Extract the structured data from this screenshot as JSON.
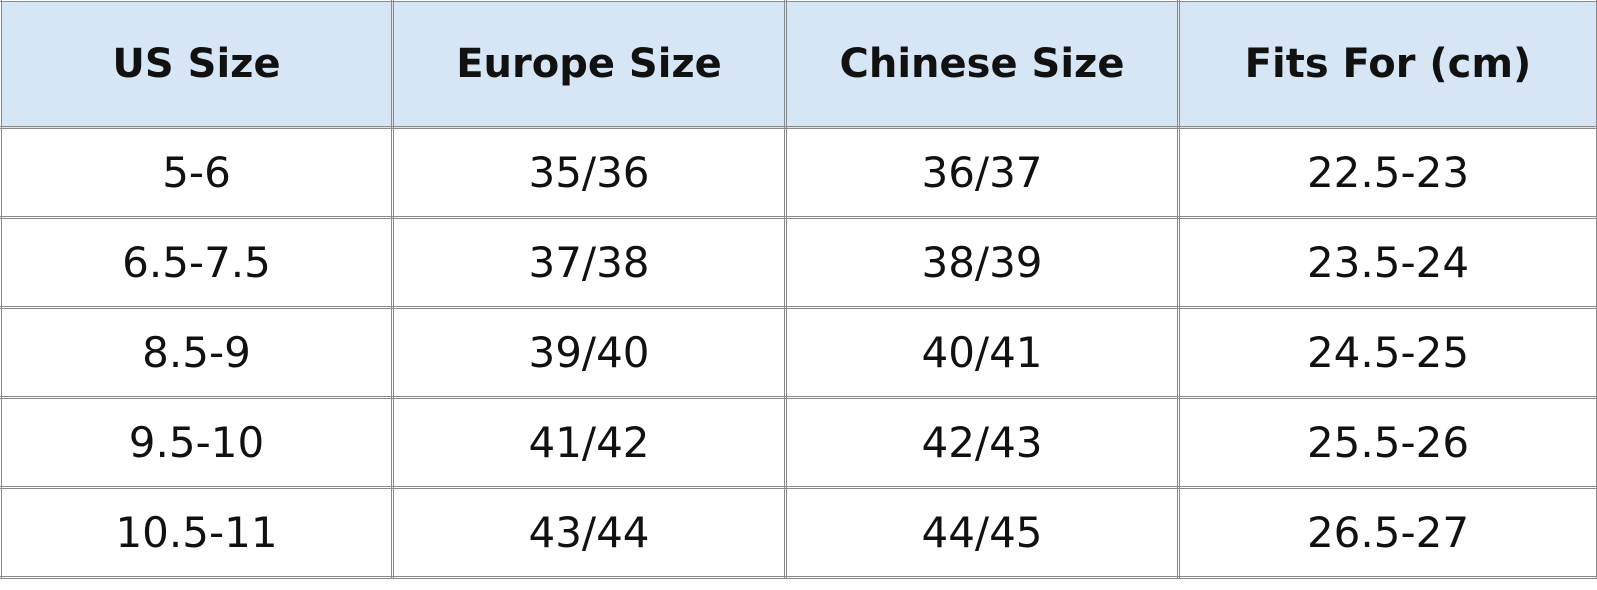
{
  "table": {
    "headers": [
      "US Size",
      "Europe Size",
      "Chinese Size",
      "Fits For (cm)"
    ],
    "rows": [
      [
        "5-6",
        "35/36",
        "36/37",
        "22.5-23"
      ],
      [
        "6.5-7.5",
        "37/38",
        "38/39",
        "23.5-24"
      ],
      [
        "8.5-9",
        "39/40",
        "40/41",
        "24.5-25"
      ],
      [
        "9.5-10",
        "41/42",
        "42/43",
        "25.5-26"
      ],
      [
        "10.5-11",
        "43/44",
        "44/45",
        "26.5-27"
      ]
    ],
    "header_bg": "#d6e6f4"
  }
}
